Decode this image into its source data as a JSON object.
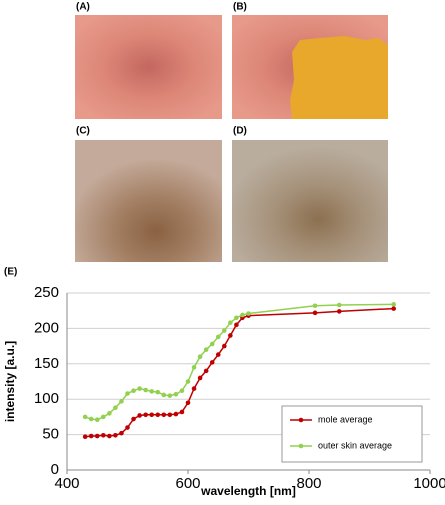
{
  "panels": {
    "a": "(A)",
    "b": "(B)",
    "c": "(C)",
    "d": "(D)"
  },
  "chart_data": {
    "type": "line",
    "panel_label": "(E)",
    "x_label": "wavelength [nm]",
    "y_label": "intensity [a.u.]",
    "x": [
      430,
      440,
      450,
      460,
      470,
      480,
      490,
      500,
      510,
      520,
      530,
      540,
      550,
      560,
      570,
      580,
      590,
      600,
      610,
      620,
      630,
      640,
      650,
      660,
      670,
      680,
      690,
      700,
      810,
      850,
      940
    ],
    "series": [
      {
        "name": "mole average",
        "color": "#c00000",
        "values": [
          47,
          48,
          48,
          49,
          48,
          49,
          52,
          60,
          72,
          77,
          78,
          78,
          78,
          78,
          78,
          79,
          82,
          95,
          115,
          130,
          140,
          152,
          163,
          175,
          190,
          205,
          215,
          218,
          222,
          224,
          228
        ]
      },
      {
        "name": "outer skin average",
        "color": "#92d050",
        "values": [
          75,
          72,
          71,
          75,
          80,
          88,
          97,
          108,
          112,
          115,
          113,
          111,
          110,
          106,
          105,
          107,
          112,
          125,
          145,
          160,
          170,
          178,
          188,
          197,
          208,
          215,
          219,
          221,
          232,
          233,
          234
        ]
      }
    ],
    "xlim": [
      400,
      1000
    ],
    "xticks": [
      400,
      600,
      800,
      1000
    ],
    "ylim": [
      0,
      250
    ],
    "yticks": [
      0,
      50,
      100,
      150,
      200,
      250
    ],
    "grid": true,
    "legend": "lower right"
  }
}
